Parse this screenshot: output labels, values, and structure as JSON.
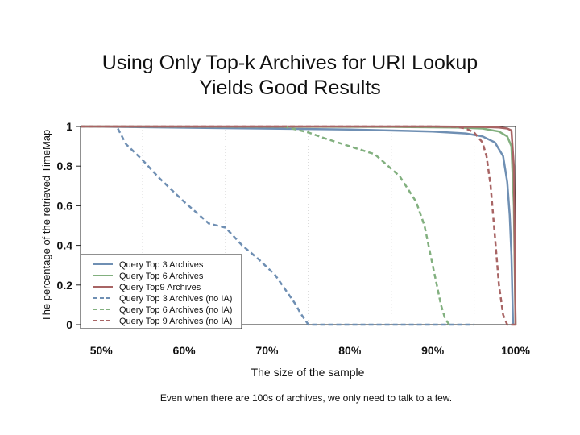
{
  "chart_data": {
    "type": "line",
    "title": [
      "Using Only Top-k Archives for URI Lookup",
      "Yields Good Results"
    ],
    "xlabel": "The size of the sample",
    "ylabel": "The percentage of the retrieved TimeMap",
    "xlim": [
      0.475,
      1.0
    ],
    "ylim": [
      0,
      1
    ],
    "x_ticks": [
      "50%",
      "60%",
      "70%",
      "80%",
      "90%",
      "100%"
    ],
    "x_tick_values": [
      0.5,
      0.6,
      0.7,
      0.8,
      0.9,
      1.0
    ],
    "y_ticks": [
      "0",
      "0.2",
      "0.4",
      "0.6",
      "0.8",
      "1"
    ],
    "y_tick_values": [
      0,
      0.2,
      0.4,
      0.6,
      0.8,
      1.0
    ],
    "grid": "vertical-dotted",
    "legend_position": "bottom-left",
    "series": [
      {
        "name": "Query Top 3 Archives",
        "color": "#6f8fb3",
        "dash": "solid",
        "x": [
          0.475,
          0.8,
          0.9,
          0.94,
          0.96,
          0.975,
          0.985,
          0.99,
          0.993,
          0.995,
          0.997
        ],
        "y": [
          1.0,
          0.985,
          0.975,
          0.965,
          0.95,
          0.92,
          0.85,
          0.72,
          0.55,
          0.35,
          0.0
        ]
      },
      {
        "name": "Query Top 6 Archives",
        "color": "#82b07f",
        "dash": "solid",
        "x": [
          0.475,
          0.85,
          0.93,
          0.96,
          0.98,
          0.99,
          0.995,
          0.998,
          1.0
        ],
        "y": [
          1.0,
          0.998,
          0.995,
          0.99,
          0.975,
          0.95,
          0.9,
          0.6,
          0.0
        ]
      },
      {
        "name": "Query Top9 Archives",
        "color": "#a86464",
        "dash": "solid",
        "x": [
          0.475,
          0.9,
          0.96,
          0.98,
          0.99,
          0.995,
          0.998,
          1.0
        ],
        "y": [
          1.0,
          1.0,
          0.998,
          0.995,
          0.99,
          0.98,
          0.8,
          0.0
        ]
      },
      {
        "name": "Query Top 3 Archives (no IA)",
        "color": "#6f8fb3",
        "dash": "dashed",
        "x": [
          0.52,
          0.53,
          0.55,
          0.57,
          0.6,
          0.63,
          0.65,
          0.67,
          0.69,
          0.71,
          0.725,
          0.735,
          0.74,
          0.745,
          0.75,
          0.8,
          0.9,
          0.95
        ],
        "y": [
          0.99,
          0.91,
          0.83,
          0.74,
          0.62,
          0.51,
          0.49,
          0.4,
          0.33,
          0.25,
          0.16,
          0.1,
          0.06,
          0.03,
          0.0,
          0.0,
          0.0,
          0.0
        ]
      },
      {
        "name": "Query Top 6 Archives (no IA)",
        "color": "#82b07f",
        "dash": "dashed",
        "x": [
          0.72,
          0.75,
          0.77,
          0.8,
          0.83,
          0.86,
          0.88,
          0.89,
          0.9,
          0.905,
          0.91,
          0.915,
          0.92
        ],
        "y": [
          1.0,
          0.97,
          0.94,
          0.9,
          0.86,
          0.75,
          0.62,
          0.5,
          0.3,
          0.2,
          0.1,
          0.03,
          0.0
        ]
      },
      {
        "name": "Query Top 9 Archives (no IA)",
        "color": "#a86464",
        "dash": "dashed",
        "x": [
          0.475,
          0.9,
          0.93,
          0.94,
          0.95,
          0.96,
          0.965,
          0.97,
          0.975,
          0.98,
          0.985,
          0.99,
          1.0
        ],
        "y": [
          1.0,
          1.0,
          0.998,
          0.99,
          0.97,
          0.92,
          0.85,
          0.7,
          0.45,
          0.2,
          0.05,
          0.0,
          0.0
        ]
      }
    ]
  },
  "caption": "Even when there are 100s of archives, we only need to talk to a few."
}
